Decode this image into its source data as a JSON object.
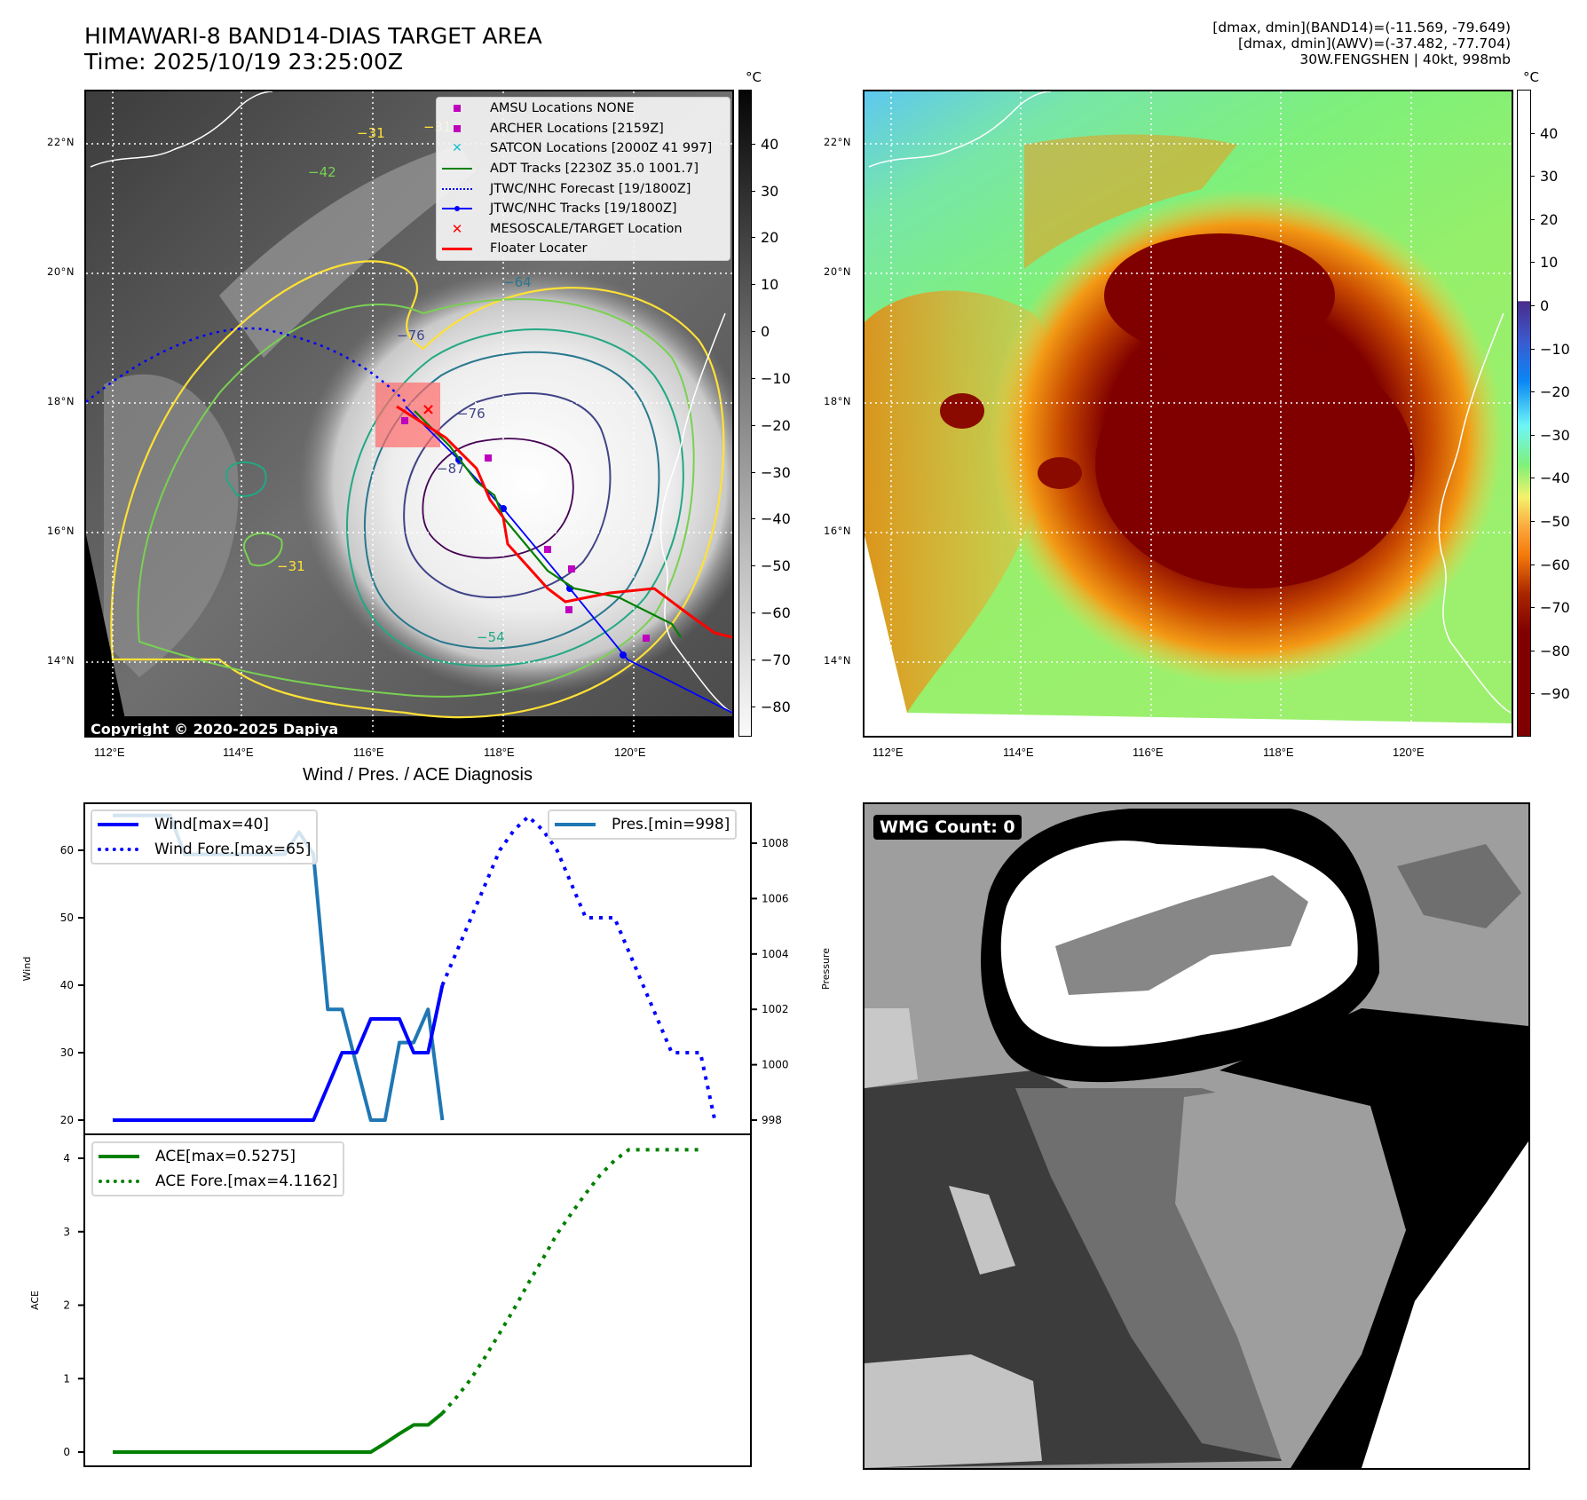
{
  "header": {
    "title_line1": "HIMAWARI-8 BAND14-DIAS TARGET AREA",
    "title_line2": "Time: 2025/10/19 23:25:00Z",
    "stats_line1": "[dmax, dmin](BAND14)=(-11.569, -79.649)",
    "stats_line2": "[dmax, dmin](AWV)=(-37.482, -77.704)",
    "stats_line3": "30W.FENGSHEN | 40kt, 998mb"
  },
  "map_left": {
    "lat_labels": [
      "22°N",
      "20°N",
      "18°N",
      "16°N",
      "14°N"
    ],
    "lon_labels": [
      "112°E",
      "114°E",
      "116°E",
      "118°E",
      "120°E"
    ],
    "contour_labels": [
      "−31",
      "−42",
      "−31",
      "−64",
      "−76",
      "−87",
      "−54",
      "−31",
      "−76"
    ],
    "copyright": "Copyright © 2020-2025 Dapiya",
    "legend": [
      {
        "label": "AMSU Locations NONE",
        "marker": "square",
        "color": "#bf00bf"
      },
      {
        "label": "ARCHER Locations [2159Z]",
        "marker": "square",
        "color": "#bf00bf"
      },
      {
        "label": "SATCON Locations [2000Z 41 997]",
        "marker": "x",
        "color": "#17becf"
      },
      {
        "label": "ADT Tracks [2230Z 35.0 1001.7]",
        "marker": "line",
        "color": "#008000"
      },
      {
        "label": "JTWC/NHC Forecast [19/1800Z]",
        "marker": "dotted",
        "color": "#0000ff"
      },
      {
        "label": "JTWC/NHC Tracks [19/1800Z]",
        "marker": "line-dot",
        "color": "#0000ff"
      },
      {
        "label": "MESOSCALE/TARGET Location",
        "marker": "x-bold",
        "color": "#ff0000"
      },
      {
        "label": "Floater Locater",
        "marker": "line",
        "color": "#ff0000"
      }
    ],
    "colorbar": {
      "unit": "°C",
      "ticks": [
        "40",
        "30",
        "20",
        "10",
        "0",
        "−10",
        "−20",
        "−30",
        "−40",
        "−50",
        "−60",
        "−70",
        "−80"
      ],
      "range": [
        -85,
        50
      ]
    }
  },
  "map_right": {
    "lat_labels": [
      "22°N",
      "20°N",
      "18°N",
      "16°N",
      "14°N"
    ],
    "lon_labels": [
      "112°E",
      "114°E",
      "116°E",
      "118°E",
      "120°E"
    ],
    "colorbar": {
      "unit": "°C",
      "ticks": [
        "40",
        "30",
        "20",
        "10",
        "0",
        "−10",
        "−20",
        "−30",
        "−40",
        "−50",
        "−60",
        "−70",
        "−80",
        "−90"
      ],
      "range": [
        -100,
        50
      ]
    }
  },
  "wmg_panel": {
    "label": "WMG Count: 0"
  },
  "chart_data": [
    {
      "type": "line",
      "title": "Wind / Pres. / ACE Diagnosis",
      "ylabel": "Wind",
      "ylabel_right": "Pressure",
      "ylim": [
        18.5,
        67
      ],
      "ylim_right": [
        997.6,
        1009.6
      ],
      "yticks": [
        "20",
        "30",
        "40",
        "50",
        "60"
      ],
      "yticks_right": [
        "998",
        "1000",
        "1002",
        "1004",
        "1006",
        "1008"
      ],
      "x": [
        0,
        1,
        2,
        3,
        4,
        5,
        6,
        7,
        8,
        9,
        10,
        11,
        12,
        13,
        14,
        15,
        16,
        17,
        18,
        19,
        20,
        21,
        22,
        23,
        24,
        25,
        26,
        27,
        28,
        29,
        30,
        31,
        32,
        33,
        34,
        35,
        36,
        37,
        38,
        39,
        40,
        41,
        42
      ],
      "series": [
        {
          "name": "Wind[max=40]",
          "axis": "left",
          "style": "solid",
          "color": "#0000ff",
          "points": [
            [
              0,
              20
            ],
            [
              1,
              20
            ],
            [
              2,
              20
            ],
            [
              3,
              20
            ],
            [
              4,
              20
            ],
            [
              5,
              20
            ],
            [
              6,
              20
            ],
            [
              7,
              20
            ],
            [
              8,
              20
            ],
            [
              9,
              20
            ],
            [
              10,
              20
            ],
            [
              11,
              20
            ],
            [
              12,
              20
            ],
            [
              13,
              20
            ],
            [
              14,
              20
            ],
            [
              15,
              25
            ],
            [
              16,
              30
            ],
            [
              17,
              30
            ],
            [
              18,
              35
            ],
            [
              19,
              35
            ],
            [
              20,
              35
            ],
            [
              21,
              30
            ],
            [
              22,
              30
            ],
            [
              23,
              40
            ]
          ]
        },
        {
          "name": "Wind Fore.[max=65]",
          "axis": "left",
          "style": "dotted",
          "color": "#0000ff",
          "points": [
            [
              23,
              40
            ],
            [
              24,
              45
            ],
            [
              25,
              50
            ],
            [
              26,
              55
            ],
            [
              27,
              60
            ],
            [
              28,
              63
            ],
            [
              29,
              65
            ],
            [
              30,
              63
            ],
            [
              31,
              60
            ],
            [
              32,
              55
            ],
            [
              33,
              50
            ],
            [
              34,
              50
            ],
            [
              35,
              50
            ],
            [
              36,
              45
            ],
            [
              37,
              40
            ],
            [
              38,
              35
            ],
            [
              39,
              30
            ],
            [
              40,
              30
            ],
            [
              41,
              30
            ],
            [
              42,
              20
            ]
          ]
        },
        {
          "name": "Pres.[min=998]",
          "axis": "right",
          "style": "solid",
          "color": "#1f77b4",
          "points": [
            [
              0,
              1009
            ],
            [
              1,
              1009
            ],
            [
              2,
              1009
            ],
            [
              3,
              1009
            ],
            [
              4,
              1009
            ],
            [
              5,
              1007.6
            ],
            [
              6,
              1007.6
            ],
            [
              7,
              1007.6
            ],
            [
              8,
              1007.6
            ],
            [
              9,
              1007.6
            ],
            [
              10,
              1007.6
            ],
            [
              11,
              1007.6
            ],
            [
              12,
              1007.6
            ],
            [
              13,
              1008.4
            ],
            [
              14,
              1007.6
            ],
            [
              15,
              1002
            ],
            [
              16,
              1002
            ],
            [
              17,
              1000
            ],
            [
              18,
              998
            ],
            [
              19,
              998
            ],
            [
              20,
              1000.8
            ],
            [
              21,
              1000.8
            ],
            [
              22,
              1002
            ],
            [
              23,
              998
            ]
          ]
        }
      ]
    },
    {
      "type": "line",
      "ylabel": "ACE",
      "ylim": [
        -0.15,
        4.35
      ],
      "yticks": [
        "0",
        "1",
        "2",
        "3",
        "4"
      ],
      "series": [
        {
          "name": "ACE[max=0.5275]",
          "style": "solid",
          "color": "#008000",
          "points": [
            [
              0,
              0
            ],
            [
              1,
              0
            ],
            [
              2,
              0
            ],
            [
              3,
              0
            ],
            [
              4,
              0
            ],
            [
              5,
              0
            ],
            [
              6,
              0
            ],
            [
              7,
              0
            ],
            [
              8,
              0
            ],
            [
              9,
              0
            ],
            [
              10,
              0
            ],
            [
              11,
              0
            ],
            [
              12,
              0
            ],
            [
              13,
              0
            ],
            [
              14,
              0
            ],
            [
              15,
              0
            ],
            [
              16,
              0
            ],
            [
              17,
              0
            ],
            [
              18,
              0
            ],
            [
              19,
              0.12
            ],
            [
              20,
              0.25
            ],
            [
              21,
              0.37
            ],
            [
              22,
              0.37
            ],
            [
              23,
              0.5275
            ]
          ]
        },
        {
          "name": "ACE Fore.[max=4.1162]",
          "style": "dotted",
          "color": "#008000",
          "points": [
            [
              23,
              0.5275
            ],
            [
              24,
              0.75
            ],
            [
              25,
              1.0
            ],
            [
              26,
              1.3
            ],
            [
              27,
              1.62
            ],
            [
              28,
              1.95
            ],
            [
              29,
              2.3
            ],
            [
              30,
              2.63
            ],
            [
              31,
              2.97
            ],
            [
              32,
              3.25
            ],
            [
              33,
              3.52
            ],
            [
              34,
              3.77
            ],
            [
              35,
              3.97
            ],
            [
              36,
              4.1162
            ],
            [
              37,
              4.1162
            ],
            [
              38,
              4.1162
            ],
            [
              39,
              4.1162
            ],
            [
              40,
              4.1162
            ],
            [
              41,
              4.1162
            ]
          ]
        }
      ]
    }
  ]
}
